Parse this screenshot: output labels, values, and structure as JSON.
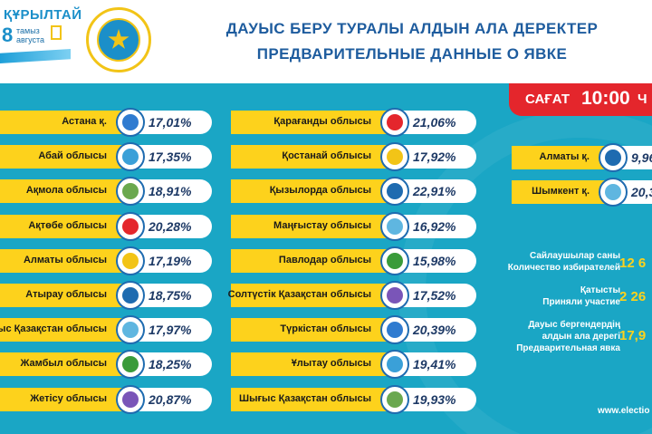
{
  "brand": {
    "word": "ҚҰРЫЛТАЙ",
    "day": "8",
    "date_kz": "тамыз",
    "date_ru": "августа"
  },
  "header": {
    "title_kz": "ДАУЫС БЕРУ ТУРАЛЫ АЛДЫН АЛА ДЕРЕКТЕР",
    "title_ru": "ПРЕДВАРИТЕЛЬНЫЕ ДАННЫЕ О ЯВКЕ"
  },
  "time": {
    "prefix": "САҒАТ",
    "value": "10:00",
    "suffix": "Ч"
  },
  "col1": [
    {
      "name": "Астана қ.",
      "pct": "17,01%"
    },
    {
      "name": "Абай облысы",
      "pct": "17,35%"
    },
    {
      "name": "Ақмола облысы",
      "pct": "18,91%"
    },
    {
      "name": "Ақтөбе облысы",
      "pct": "20,28%"
    },
    {
      "name": "Алматы облысы",
      "pct": "17,19%"
    },
    {
      "name": "Атырау облысы",
      "pct": "18,75%"
    },
    {
      "name": "атыс Қазақстан облысы",
      "pct": "17,97%"
    },
    {
      "name": "Жамбыл облысы",
      "pct": "18,25%"
    },
    {
      "name": "Жетісу облысы",
      "pct": "20,87%"
    }
  ],
  "col2": [
    {
      "name": "Қарағанды облысы",
      "pct": "21,06%"
    },
    {
      "name": "Қостанай облысы",
      "pct": "17,92%"
    },
    {
      "name": "Қызылорда облысы",
      "pct": "22,91%"
    },
    {
      "name": "Маңғыстау облысы",
      "pct": "16,92%"
    },
    {
      "name": "Павлодар облысы",
      "pct": "15,98%"
    },
    {
      "name": "Солтүстік Қазақстан облысы",
      "pct": "17,52%"
    },
    {
      "name": "Түркістан облысы",
      "pct": "20,39%"
    },
    {
      "name": "Ұлытау облысы",
      "pct": "19,41%"
    },
    {
      "name": "Шығыс Қазақстан облысы",
      "pct": "19,93%"
    }
  ],
  "col3": [
    {
      "name": "Алматы қ.",
      "pct": "9,96"
    },
    {
      "name": "Шымкент қ.",
      "pct": "20,3"
    }
  ],
  "stats": {
    "voters_kz": "Сайлаушылар саны",
    "voters_ru": "Количество избирателей",
    "voters_value": "12 6",
    "participated_kz": "Қатысты",
    "participated_ru": "Приняли участие",
    "participated_value": "2 26",
    "turnout_kz_1": "Дауыс бергендердің",
    "turnout_kz_2": "алдын ала дерегі",
    "turnout_ru": "Предварительная явка",
    "turnout_value": "17,9"
  },
  "website": "www.electio",
  "colors": {
    "accent_yellow": "#fdd21c",
    "background_teal": "#1aa6c5",
    "time_red": "#e4262c",
    "title_blue": "#1e5c9e"
  },
  "icons": [
    "region-emblem-icon",
    "election-commission-emblem-icon",
    "qurultai-logo-icon"
  ]
}
